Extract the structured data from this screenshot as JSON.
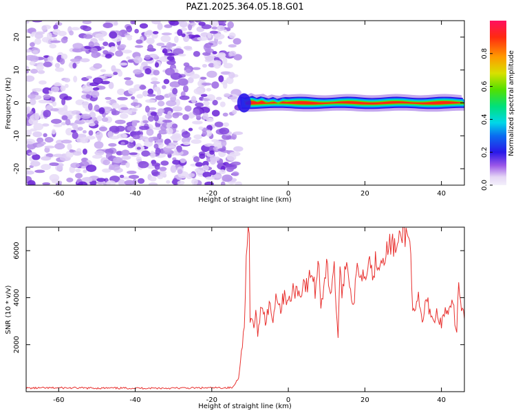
{
  "title": "PAZ1.2025.364.05.18.G01",
  "chart_data": [
    {
      "type": "heatmap",
      "name": "spectrogram",
      "xlabel": "Height of straight line (km)",
      "ylabel": "Frequency (Hz)",
      "xlim": [
        -68.5,
        46
      ],
      "ylim": [
        -25,
        25
      ],
      "xticks": [
        -60,
        -40,
        -20,
        0,
        20,
        40
      ],
      "yticks": [
        -20,
        -10,
        0,
        10,
        20
      ],
      "noise_region_x": [
        -68.5,
        -13
      ],
      "signal_region_x": [
        -13,
        46
      ],
      "signal_frequency_hz": 0,
      "colorbar": {
        "label": "Normalized spectral amplitude",
        "range": [
          0,
          1
        ],
        "ticks": [
          0.0,
          0.2,
          0.4,
          0.6,
          0.8
        ]
      }
    },
    {
      "type": "line",
      "name": "snr",
      "xlabel": "Height of straight line (km)",
      "ylabel": "SNR (10 * v/v)",
      "xlim": [
        -68.5,
        46
      ],
      "ylim": [
        0,
        7000
      ],
      "xticks": [
        -60,
        -40,
        -20,
        0,
        20,
        40
      ],
      "yticks": [
        2000,
        4000,
        6000
      ],
      "color": "#e8302e",
      "series": [
        {
          "name": "SNR",
          "x": [
            -68.5,
            -60,
            -50,
            -40,
            -30,
            -20,
            -14.5,
            -13,
            -12.5,
            -12,
            -11.5,
            -11,
            -10.5,
            -10.2,
            -10,
            -9.5,
            -9,
            -8.5,
            -8,
            -7,
            -6,
            -5,
            -4,
            -3,
            -2,
            -1,
            0,
            1,
            2,
            3,
            4,
            5,
            6,
            7,
            8,
            8.5,
            9,
            10,
            11,
            12,
            12.5,
            13,
            13.5,
            14,
            15,
            16,
            17,
            18,
            19,
            20,
            21,
            22,
            23,
            24,
            25,
            26,
            27,
            28,
            29,
            30,
            31,
            32,
            32.5,
            33,
            34,
            35,
            36,
            37,
            38,
            39,
            40,
            41,
            42,
            43,
            44,
            44.5,
            45,
            46
          ],
          "values": [
            150,
            160,
            150,
            150,
            150,
            160,
            170,
            600,
            1400,
            1900,
            3000,
            5500,
            6800,
            6900,
            2700,
            3200,
            2600,
            3600,
            2200,
            3900,
            3000,
            3700,
            3100,
            4300,
            3400,
            4300,
            3700,
            4200,
            4400,
            4100,
            4700,
            4400,
            5200,
            4300,
            5600,
            3700,
            4200,
            5400,
            4200,
            5500,
            3300,
            2500,
            4900,
            4200,
            5600,
            4800,
            3500,
            5300,
            5100,
            4900,
            5900,
            4900,
            5700,
            5500,
            5900,
            6000,
            6400,
            6000,
            6300,
            6900,
            6600,
            6300,
            3200,
            3300,
            3900,
            2900,
            3900,
            3500,
            3000,
            3400,
            2800,
            3500,
            3300,
            3700,
            2500,
            4900,
            3700,
            3100
          ]
        }
      ]
    }
  ]
}
